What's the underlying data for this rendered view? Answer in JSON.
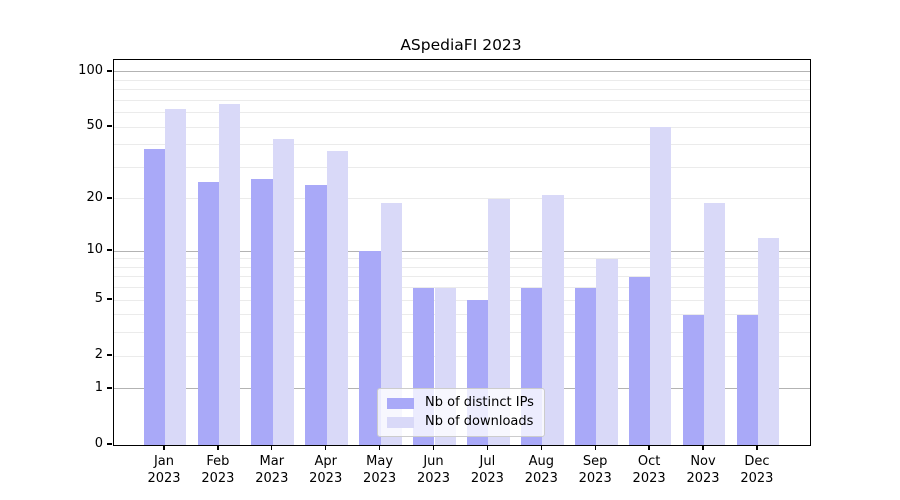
{
  "title": "ASpediaFI 2023",
  "colors": {
    "bar_ips": "#a9a9f8",
    "bar_downloads": "#d9d9f8",
    "grid_major": "#b3b3b3",
    "grid_minor": "#ebebeb",
    "axis": "#000000",
    "legend_border": "#cccccc"
  },
  "chart_data": {
    "type": "bar",
    "title": "ASpediaFI 2023",
    "yscale": "log1p",
    "grid": "on",
    "ylim": [
      0,
      116
    ],
    "yticks": [
      0,
      1,
      2,
      5,
      10,
      20,
      50,
      100
    ],
    "grid_major_values": [
      1,
      10,
      100
    ],
    "grid_minor_values": [
      2,
      3,
      4,
      5,
      6,
      7,
      8,
      9,
      20,
      30,
      40,
      50,
      60,
      70,
      80,
      90
    ],
    "categories": [
      {
        "month": "Jan",
        "year": "2023"
      },
      {
        "month": "Feb",
        "year": "2023"
      },
      {
        "month": "Mar",
        "year": "2023"
      },
      {
        "month": "Apr",
        "year": "2023"
      },
      {
        "month": "May",
        "year": "2023"
      },
      {
        "month": "Jun",
        "year": "2023"
      },
      {
        "month": "Jul",
        "year": "2023"
      },
      {
        "month": "Aug",
        "year": "2023"
      },
      {
        "month": "Sep",
        "year": "2023"
      },
      {
        "month": "Oct",
        "year": "2023"
      },
      {
        "month": "Nov",
        "year": "2023"
      },
      {
        "month": "Dec",
        "year": "2023"
      }
    ],
    "series": [
      {
        "name": "Nb of distinct IPs",
        "color": "#a9a9f8",
        "values": [
          38,
          25,
          26,
          24,
          10,
          6,
          5,
          6,
          6,
          7,
          4,
          4
        ]
      },
      {
        "name": "Nb of downloads",
        "color": "#d9d9f8",
        "values": [
          63,
          67,
          43,
          37,
          19,
          6,
          20,
          21,
          9,
          50,
          19,
          12
        ]
      }
    ],
    "legend_position": "lower center"
  }
}
